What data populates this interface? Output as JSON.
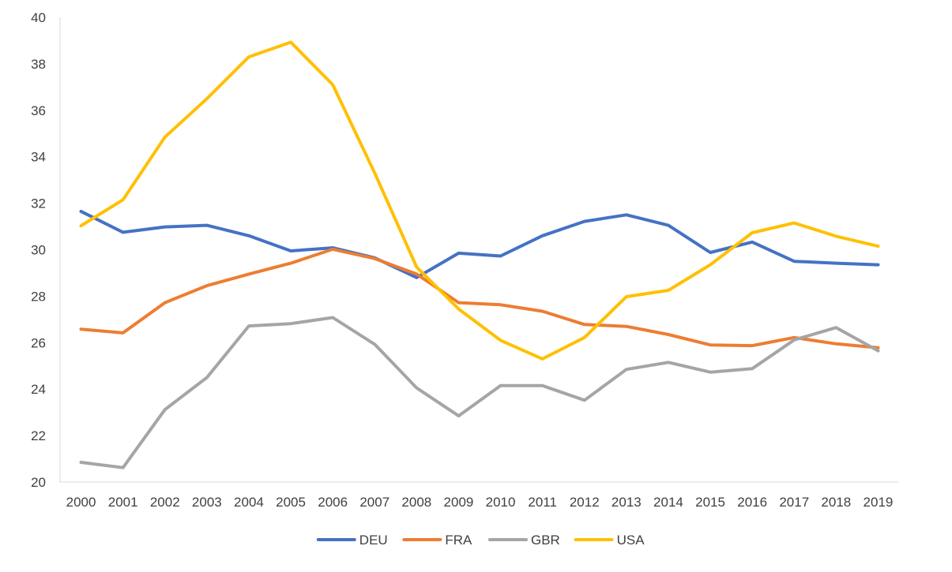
{
  "chart_data": {
    "type": "line",
    "title": "",
    "xlabel": "",
    "ylabel": "",
    "x": [
      "2000",
      "2001",
      "2002",
      "2003",
      "2004",
      "2005",
      "2006",
      "2007",
      "2008",
      "2009",
      "2010",
      "2011",
      "2012",
      "2013",
      "2014",
      "2015",
      "2016",
      "2017",
      "2018",
      "2019"
    ],
    "ylim": [
      20,
      40
    ],
    "yticks": [
      20,
      22,
      24,
      26,
      28,
      30,
      32,
      34,
      36,
      38,
      40
    ],
    "grid": false,
    "legend_position": "bottom",
    "series": [
      {
        "name": "DEU",
        "color": "#4472C4",
        "values": [
          31.65,
          30.75,
          30.98,
          31.05,
          30.6,
          29.95,
          30.08,
          29.65,
          28.8,
          29.85,
          29.73,
          30.6,
          31.22,
          31.5,
          31.05,
          29.88,
          30.33,
          29.5,
          29.42,
          29.35
        ]
      },
      {
        "name": "FRA",
        "color": "#ED7D31",
        "values": [
          26.58,
          26.42,
          27.72,
          28.45,
          28.95,
          29.42,
          30.02,
          29.62,
          28.95,
          27.72,
          27.63,
          27.35,
          26.78,
          26.7,
          26.35,
          25.9,
          25.87,
          26.22,
          25.95,
          25.78
        ]
      },
      {
        "name": "GBR",
        "color": "#A5A5A5",
        "values": [
          20.85,
          20.62,
          23.12,
          24.5,
          26.72,
          26.82,
          27.08,
          25.93,
          24.05,
          22.85,
          24.15,
          24.15,
          23.52,
          24.85,
          25.15,
          24.73,
          24.88,
          26.12,
          26.65,
          25.65
        ]
      },
      {
        "name": "USA",
        "color": "#FFC000",
        "values": [
          31.03,
          32.15,
          34.85,
          36.5,
          38.3,
          38.93,
          37.1,
          33.3,
          29.25,
          27.45,
          26.1,
          25.3,
          26.22,
          27.98,
          28.25,
          29.35,
          30.73,
          31.15,
          30.58,
          30.15
        ]
      }
    ]
  }
}
